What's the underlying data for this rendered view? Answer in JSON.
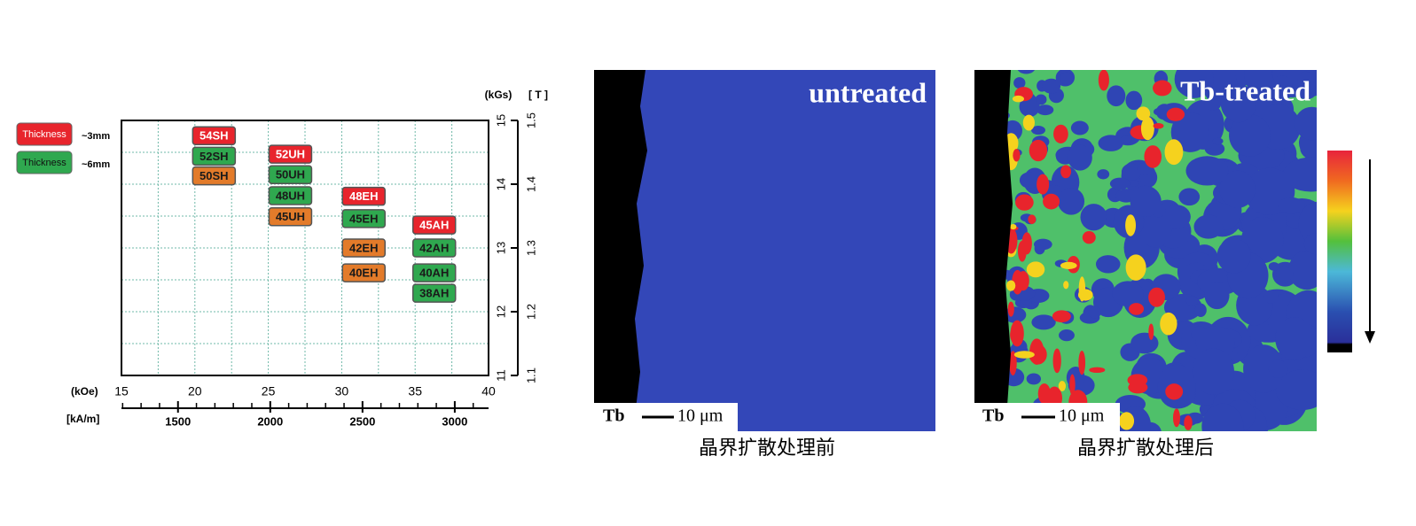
{
  "chart_data": {
    "type": "grade-map",
    "x_label": "(kOe)",
    "x2_label": "[kA/m]",
    "y_label": "(kGs)",
    "y2_label": "[ T ]",
    "xlim": [
      15,
      40
    ],
    "xticks": [
      15,
      20,
      25,
      30,
      35,
      40
    ],
    "xgrid": [
      17.5,
      20,
      22.5,
      25,
      27.5,
      30,
      32.5,
      35,
      37.5
    ],
    "x2lim": [
      1193.7,
      3183.1
    ],
    "x2ticks": [
      1500,
      2000,
      2500,
      3000
    ],
    "x2minor": [
      1200,
      1300,
      1400,
      1600,
      1700,
      1800,
      1900,
      2100,
      2200,
      2300,
      2400,
      2600,
      2700,
      2800,
      2900,
      3100
    ],
    "ylim": [
      11,
      15
    ],
    "yticks": [
      11,
      12,
      13,
      14,
      15
    ],
    "ygrid": [
      11.5,
      12,
      12.5,
      13,
      13.5,
      14,
      14.5
    ],
    "y2lim": [
      1.1,
      1.5
    ],
    "y2ticks": [
      1.1,
      1.2,
      1.3,
      1.4,
      1.5
    ],
    "legend": [
      {
        "label": "Thickness",
        "note": "~3mm",
        "color": "#e8242c"
      },
      {
        "label": "Thickness",
        "note": "~6mm",
        "color": "#2fa84f"
      }
    ],
    "points": [
      {
        "label": "54SH",
        "x": 21.3,
        "y": 14.76,
        "color": "#e8242c"
      },
      {
        "label": "52SH",
        "x": 21.3,
        "y": 14.44,
        "color": "#2fa84f"
      },
      {
        "label": "50SH",
        "x": 21.3,
        "y": 14.13,
        "color": "#e37b2a"
      },
      {
        "label": "52UH",
        "x": 26.5,
        "y": 14.47,
        "color": "#e8242c"
      },
      {
        "label": "50UH",
        "x": 26.5,
        "y": 14.15,
        "color": "#2fa84f"
      },
      {
        "label": "48UH",
        "x": 26.5,
        "y": 13.82,
        "color": "#2fa84f"
      },
      {
        "label": "45UH",
        "x": 26.5,
        "y": 13.49,
        "color": "#e37b2a"
      },
      {
        "label": "48EH",
        "x": 31.5,
        "y": 13.81,
        "color": "#e8242c"
      },
      {
        "label": "45EH",
        "x": 31.5,
        "y": 13.46,
        "color": "#2fa84f"
      },
      {
        "label": "42EH",
        "x": 31.5,
        "y": 13.0,
        "color": "#e37b2a"
      },
      {
        "label": "40EH",
        "x": 31.5,
        "y": 12.61,
        "color": "#e37b2a"
      },
      {
        "label": "45AH",
        "x": 36.3,
        "y": 13.36,
        "color": "#e8242c"
      },
      {
        "label": "42AH",
        "x": 36.3,
        "y": 13.0,
        "color": "#2fa84f"
      },
      {
        "label": "40AH",
        "x": 36.3,
        "y": 12.61,
        "color": "#2fa84f"
      },
      {
        "label": "38AH",
        "x": 36.3,
        "y": 12.29,
        "color": "#2fa84f"
      }
    ]
  },
  "images": [
    {
      "title": "untreated",
      "scale_element": "Tb",
      "scale_length": "10 μm",
      "caption": "晶界扩散处理前"
    },
    {
      "title": "Tb-treated",
      "scale_element": "Tb",
      "scale_length": "10 μm",
      "caption": "晶界扩散处理后"
    }
  ]
}
